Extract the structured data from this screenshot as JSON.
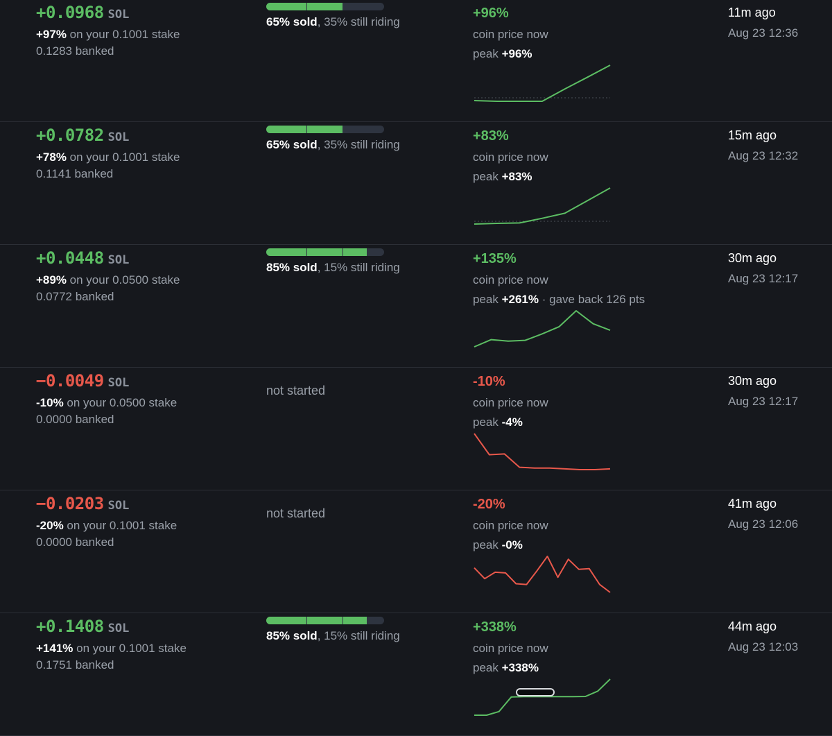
{
  "colors": {
    "positive": "#5cbd63",
    "negative": "#e8584b",
    "background": "#16181d"
  },
  "trades": [
    {
      "pnl": "+0.0968",
      "unit": "SOL",
      "tone": "pos",
      "stake_pct": "+97%",
      "stake_text": " on your 0.1001 stake",
      "banked": "0.1283 banked",
      "sold_progress": 0.65,
      "sold_label": "65% sold",
      "riding_label": ", 35% still riding",
      "not_started": "",
      "price_now": "+96%",
      "price_label": "coin price now",
      "peak_label": "peak ",
      "peak_value": "+96%",
      "peak_extra": "",
      "sparkline": [
        0.0,
        -0.02,
        -0.02,
        -0.02,
        0.33,
        0.66,
        1.0
      ],
      "baseline": true,
      "ago": "11m ago",
      "date": "Aug 23 12:36"
    },
    {
      "pnl": "+0.0782",
      "unit": "SOL",
      "tone": "pos",
      "stake_pct": "+78%",
      "stake_text": " on your 0.1001 stake",
      "banked": "0.1141 banked",
      "sold_progress": 0.65,
      "sold_label": "65% sold",
      "riding_label": ", 35% still riding",
      "not_started": "",
      "price_now": "+83%",
      "price_label": "coin price now",
      "peak_label": "peak ",
      "peak_value": "+83%",
      "peak_extra": "",
      "sparkline": [
        0.0,
        0.02,
        0.03,
        0.16,
        0.3,
        0.65,
        1.0
      ],
      "baseline": true,
      "ago": "15m ago",
      "date": "Aug 23 12:32"
    },
    {
      "pnl": "+0.0448",
      "unit": "SOL",
      "tone": "pos",
      "stake_pct": "+89%",
      "stake_text": " on your 0.0500 stake",
      "banked": "0.0772 banked",
      "sold_progress": 0.85,
      "sold_label": "85% sold",
      "riding_label": ", 15% still riding",
      "not_started": "",
      "price_now": "+135%",
      "price_label": "coin price now",
      "peak_label": "peak ",
      "peak_value": "+261%",
      "peak_extra": " · gave back 126 pts",
      "sparkline": [
        0.0,
        0.2,
        0.16,
        0.18,
        0.36,
        0.56,
        1.0,
        0.64,
        0.46
      ],
      "baseline": false,
      "ago": "30m ago",
      "date": "Aug 23 12:17"
    },
    {
      "pnl": "−0.0049",
      "unit": "SOL",
      "tone": "neg",
      "stake_pct": "-10%",
      "stake_text": " on your 0.0500 stake",
      "banked": "0.0000 banked",
      "sold_progress": 0,
      "sold_label": "",
      "riding_label": "",
      "not_started": "not started",
      "price_now": "-10%",
      "price_label": "coin price now",
      "peak_label": "peak ",
      "peak_value": "-4%",
      "peak_extra": "",
      "sparkline": [
        1.0,
        0.46,
        0.48,
        0.14,
        0.12,
        0.12,
        0.1,
        0.08,
        0.08,
        0.1
      ],
      "baseline": false,
      "ago": "30m ago",
      "date": "Aug 23 12:17"
    },
    {
      "pnl": "−0.0203",
      "unit": "SOL",
      "tone": "neg",
      "stake_pct": "-20%",
      "stake_text": " on your 0.1001 stake",
      "banked": "0.0000 banked",
      "sold_progress": 0,
      "sold_label": "",
      "riding_label": "",
      "not_started": "not started",
      "price_now": "-20%",
      "price_label": "coin price now",
      "peak_label": "peak ",
      "peak_value": "-0%",
      "peak_extra": "",
      "sparkline": [
        0.68,
        0.38,
        0.56,
        0.54,
        0.24,
        0.22,
        0.6,
        1.0,
        0.42,
        0.92,
        0.64,
        0.66,
        0.22,
        0.0
      ],
      "baseline": false,
      "ago": "41m ago",
      "date": "Aug 23 12:06"
    },
    {
      "pnl": "+0.1408",
      "unit": "SOL",
      "tone": "pos",
      "stake_pct": "+141%",
      "stake_text": " on your 0.1001 stake",
      "banked": "0.1751 banked",
      "sold_progress": 0.85,
      "sold_label": "85% sold",
      "riding_label": ", 15% still riding",
      "not_started": "",
      "price_now": "+338%",
      "price_label": "coin price now",
      "peak_label": "peak ",
      "peak_value": "+338%",
      "peak_extra": "",
      "sparkline": [
        0.0,
        0.0,
        0.3,
        1.52,
        1.54,
        1.54,
        1.54,
        1.54,
        1.54,
        1.56,
        2.0,
        3.0
      ],
      "baseline": false,
      "ago": "44m ago",
      "date": "Aug 23 12:03"
    }
  ]
}
